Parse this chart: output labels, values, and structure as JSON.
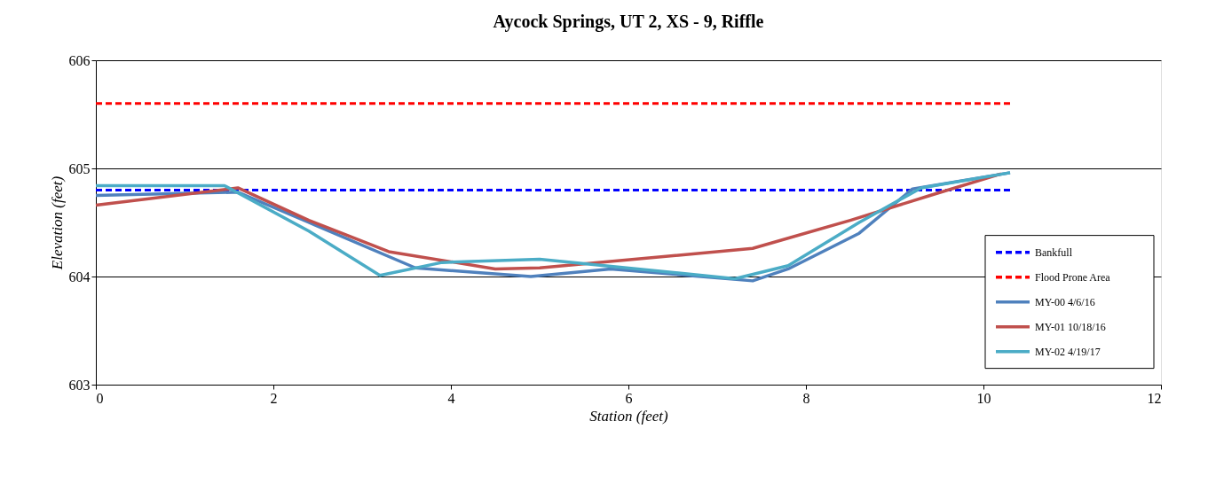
{
  "chart_data": {
    "type": "line",
    "title": "Aycock Springs, UT 2, XS - 9, Riffle",
    "xlabel": "Station (feet)",
    "ylabel": "Elevation (feet)",
    "xlim": [
      0,
      12
    ],
    "xticks": [
      0,
      2,
      4,
      6,
      8,
      10,
      12
    ],
    "ylim": [
      603,
      606
    ],
    "yticks": [
      603,
      604,
      605,
      606
    ],
    "grid": "y",
    "legend": "right",
    "marker": "none",
    "series": [
      {
        "name": "Bankfull",
        "color": "#0000ff",
        "line_style": "dashed",
        "x": [
          0,
          10.3
        ],
        "values": [
          604.8,
          604.8
        ]
      },
      {
        "name": "Flood Prone Area",
        "color": "#ff0000",
        "line_style": "dashed",
        "x": [
          0,
          10.3
        ],
        "values": [
          605.6,
          605.6
        ]
      },
      {
        "name": "MY-00 4/6/16",
        "color": "#4f81bd",
        "line_style": "solid",
        "x": [
          0,
          1.6,
          2.4,
          3.6,
          4.9,
          5.8,
          7.4,
          7.8,
          8.6,
          9.2,
          10.3
        ],
        "values": [
          604.75,
          604.78,
          604.5,
          604.08,
          604.0,
          604.07,
          603.96,
          604.07,
          604.4,
          604.81,
          604.96
        ]
      },
      {
        "name": "MY-01 10/18/16",
        "color": "#c0504d",
        "line_style": "solid",
        "x": [
          0,
          1.6,
          2.4,
          3.3,
          4.5,
          5.0,
          7.4,
          8.5,
          9.4,
          10.2
        ],
        "values": [
          604.66,
          604.82,
          604.52,
          604.23,
          604.07,
          604.08,
          604.26,
          604.52,
          604.75,
          604.95
        ]
      },
      {
        "name": "MY-02 4/19/17",
        "color": "#4bacc6",
        "line_style": "solid",
        "x": [
          0,
          1.45,
          2.4,
          3.2,
          3.9,
          5.0,
          7.2,
          7.8,
          8.6,
          9.3,
          10.3
        ],
        "values": [
          604.84,
          604.84,
          604.42,
          604.01,
          604.13,
          604.16,
          603.98,
          604.1,
          604.5,
          604.82,
          604.96
        ]
      }
    ]
  }
}
